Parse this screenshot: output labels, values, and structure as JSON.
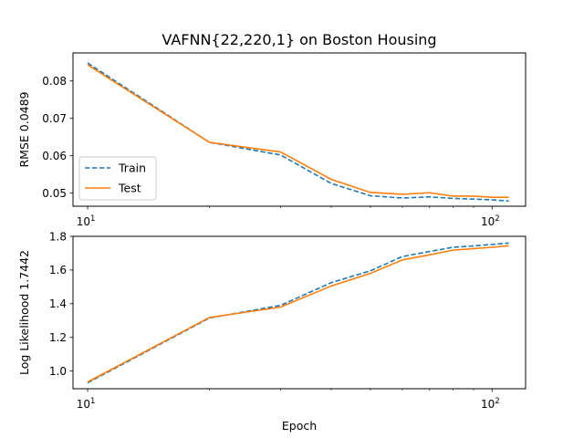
{
  "title": "VAFNN{22,220,1} on Boston Housing",
  "colors": {
    "train": "#1f77b4",
    "test": "#ff7f0e"
  },
  "chart_data": [
    {
      "type": "line",
      "ylabel": "RMSE 0.0489",
      "xlabel": "",
      "xscale": "log",
      "xlim": [
        9.2,
        121
      ],
      "ylim": [
        0.0465,
        0.0875
      ],
      "xticks": [
        {
          "value": 10,
          "base": "10",
          "exp": "1"
        },
        {
          "value": 100,
          "base": "10",
          "exp": "2"
        }
      ],
      "yticks": [
        {
          "value": 0.05,
          "label": "0.05"
        },
        {
          "value": 0.06,
          "label": "0.06"
        },
        {
          "value": 0.07,
          "label": "0.07"
        },
        {
          "value": 0.08,
          "label": "0.08"
        }
      ],
      "legend": "lower-left",
      "series": [
        {
          "name": "Train",
          "style": "dashed",
          "x": [
            10,
            20,
            30,
            40,
            50,
            60,
            70,
            80,
            90,
            100,
            110
          ],
          "y": [
            0.0848,
            0.0636,
            0.0602,
            0.0526,
            0.0493,
            0.0487,
            0.049,
            0.0486,
            0.0484,
            0.0482,
            0.0479
          ]
        },
        {
          "name": "Test",
          "style": "solid",
          "x": [
            10,
            20,
            30,
            40,
            50,
            60,
            70,
            80,
            90,
            100,
            110
          ],
          "y": [
            0.0843,
            0.0636,
            0.061,
            0.0537,
            0.0502,
            0.0497,
            0.0501,
            0.0492,
            0.0492,
            0.0489,
            0.0489
          ]
        }
      ]
    },
    {
      "type": "line",
      "ylabel": "Log Likelihood 1.7442",
      "xlabel": "Epoch",
      "xscale": "log",
      "xlim": [
        9.2,
        121
      ],
      "ylim": [
        0.895,
        1.8
      ],
      "xticks": [
        {
          "value": 10,
          "base": "10",
          "exp": "1"
        },
        {
          "value": 100,
          "base": "10",
          "exp": "2"
        }
      ],
      "yticks": [
        {
          "value": 1.0,
          "label": "1.0"
        },
        {
          "value": 1.2,
          "label": "1.2"
        },
        {
          "value": 1.4,
          "label": "1.4"
        },
        {
          "value": 1.6,
          "label": "1.6"
        },
        {
          "value": 1.8,
          "label": "1.8"
        }
      ],
      "legend": "none",
      "series": [
        {
          "name": "Train",
          "style": "dashed",
          "x": [
            10,
            20,
            30,
            40,
            50,
            60,
            70,
            80,
            90,
            100,
            110
          ],
          "y": [
            0.93,
            1.315,
            1.39,
            1.525,
            1.595,
            1.68,
            1.71,
            1.735,
            1.743,
            1.752,
            1.76
          ]
        },
        {
          "name": "Test",
          "style": "solid",
          "x": [
            10,
            20,
            30,
            40,
            50,
            60,
            70,
            80,
            90,
            100,
            110
          ],
          "y": [
            0.935,
            1.318,
            1.38,
            1.505,
            1.58,
            1.66,
            1.69,
            1.718,
            1.727,
            1.735,
            1.744
          ]
        }
      ]
    }
  ]
}
